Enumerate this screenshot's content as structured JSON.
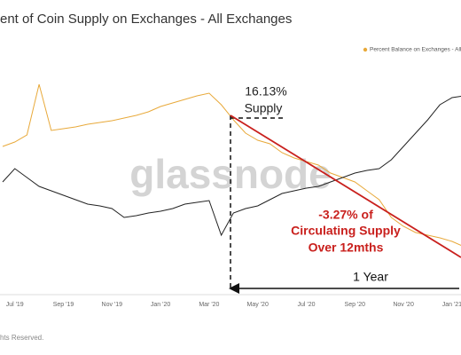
{
  "chart_data": {
    "type": "line",
    "title": "ent of Coin Supply on Exchanges - All Exchanges",
    "categories": [
      null,
      "Jul '19",
      null,
      null,
      null,
      "Sep '19",
      null,
      null,
      null,
      "Nov '19",
      null,
      null,
      null,
      "Jan '20",
      null,
      null,
      null,
      "Mar '20",
      null,
      null,
      null,
      "May '20",
      null,
      null,
      null,
      "Jul '20",
      null,
      null,
      null,
      "Sep '20",
      null,
      null,
      null,
      "Nov '20",
      null,
      null,
      null,
      "Jan '21",
      null
    ],
    "series": [
      {
        "name": "Percent Balance on Exchanges - All Exc",
        "color": "#e8a93a",
        "values": [
          145,
          150,
          158,
          215,
          163,
          165,
          167,
          170,
          172,
          174,
          177,
          180,
          184,
          190,
          194,
          198,
          202,
          205,
          192,
          175,
          160,
          152,
          148,
          138,
          132,
          128,
          124,
          115,
          110,
          105,
          95,
          85,
          65,
          55,
          48,
          45,
          42,
          38,
          32
        ]
      },
      {
        "color": "#222222",
        "values": [
          105,
          120,
          110,
          100,
          95,
          90,
          85,
          80,
          78,
          75,
          65,
          67,
          70,
          72,
          75,
          80,
          82,
          84,
          45,
          70,
          75,
          78,
          85,
          92,
          95,
          98,
          100,
          105,
          110,
          115,
          118,
          120,
          130,
          145,
          160,
          175,
          192,
          200,
          202
        ]
      }
    ],
    "ylim": [
      0,
      270
    ],
    "legend": "top-right",
    "annotations": [
      "16.13%",
      "Supply",
      "-3.27% of",
      "Circulating Supply",
      "Over 12mths",
      "1 Year"
    ],
    "watermark": "glassnode",
    "footer": "hts Reserved."
  }
}
